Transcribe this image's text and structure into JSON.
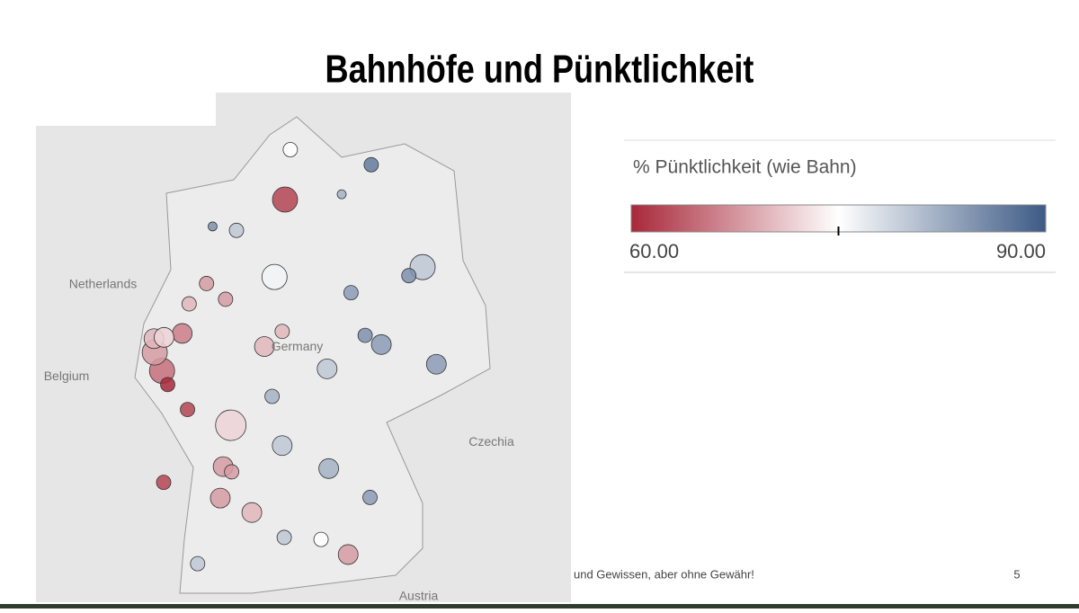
{
  "header": {
    "title": "Bahnhöfe und Pünktlichkeit"
  },
  "legend": {
    "title": "% Pünktlichkeit (wie Bahn)",
    "min": {
      "value": 60,
      "label": "60.00"
    },
    "max": {
      "value": 90,
      "label": "90.00"
    },
    "center": 75,
    "colors": [
      "#a8283a",
      "#ffffff",
      "#3d5a85"
    ]
  },
  "map": {
    "labels": [
      {
        "text": "Netherlands",
        "lon": 5.5,
        "lat": 52.25
      },
      {
        "text": "Germany",
        "lon": 10.3,
        "lat": 51.3
      },
      {
        "text": "Belgium",
        "lon": 4.6,
        "lat": 50.85
      },
      {
        "text": "Czechia",
        "lon": 15.1,
        "lat": 49.85
      },
      {
        "text": "Austria",
        "lon": 13.3,
        "lat": 47.5
      }
    ],
    "stations": [
      {
        "lon": 10,
        "lat": 53.55,
        "pct": 62,
        "size": 4
      },
      {
        "lon": 8.8,
        "lat": 53.08,
        "pct": 80,
        "size": 2
      },
      {
        "lon": 13.4,
        "lat": 52.52,
        "pct": 80,
        "size": 4
      },
      {
        "lon": 9.74,
        "lat": 52.37,
        "pct": 76,
        "size": 4
      },
      {
        "lon": 6.96,
        "lat": 50.94,
        "pct": 65,
        "size": 4
      },
      {
        "lon": 6.78,
        "lat": 51.22,
        "pct": 68,
        "size": 4
      },
      {
        "lon": 6.76,
        "lat": 51.43,
        "pct": 70,
        "size": 3
      },
      {
        "lon": 7.46,
        "lat": 51.51,
        "pct": 66,
        "size": 3
      },
      {
        "lon": 7.01,
        "lat": 51.45,
        "pct": 72,
        "size": 3
      },
      {
        "lon": 8.66,
        "lat": 50.11,
        "pct": 72,
        "size": 5
      },
      {
        "lon": 8.47,
        "lat": 49.48,
        "pct": 68,
        "size": 3
      },
      {
        "lon": 9.18,
        "lat": 48.78,
        "pct": 70,
        "size": 3
      },
      {
        "lon": 11.56,
        "lat": 48.14,
        "pct": 68,
        "size": 3
      },
      {
        "lon": 11.08,
        "lat": 49.45,
        "pct": 82,
        "size": 3
      },
      {
        "lon": 12.38,
        "lat": 51.34,
        "pct": 84,
        "size": 3
      },
      {
        "lon": 13.74,
        "lat": 51.04,
        "pct": 84,
        "size": 3
      },
      {
        "lon": 11.04,
        "lat": 50.97,
        "pct": 80,
        "size": 3
      },
      {
        "lon": 9.49,
        "lat": 51.31,
        "pct": 70,
        "size": 3
      },
      {
        "lon": 9.93,
        "lat": 51.54,
        "pct": 70,
        "size": 2
      },
      {
        "lon": 9.93,
        "lat": 49.8,
        "pct": 80,
        "size": 3
      },
      {
        "lon": 12.13,
        "lat": 54.08,
        "pct": 87,
        "size": 2
      },
      {
        "lon": 10.13,
        "lat": 54.31,
        "pct": 75,
        "size": 2
      },
      {
        "lon": 8.06,
        "lat": 52.27,
        "pct": 68,
        "size": 2
      },
      {
        "lon": 7.63,
        "lat": 51.96,
        "pct": 70,
        "size": 2
      },
      {
        "lon": 7.59,
        "lat": 50.35,
        "pct": 62,
        "size": 2
      },
      {
        "lon": 7.1,
        "lat": 50.73,
        "pct": 60,
        "size": 2
      },
      {
        "lon": 8.4,
        "lat": 49.0,
        "pct": 68,
        "size": 3
      },
      {
        "lon": 7.84,
        "lat": 48.0,
        "pct": 80,
        "size": 2
      },
      {
        "lon": 10.89,
        "lat": 48.37,
        "pct": 75,
        "size": 2
      },
      {
        "lon": 12.1,
        "lat": 49.01,
        "pct": 84,
        "size": 2
      },
      {
        "lon": 11.63,
        "lat": 52.13,
        "pct": 84,
        "size": 2
      },
      {
        "lon": 11.98,
        "lat": 51.48,
        "pct": 85,
        "size": 2
      },
      {
        "lon": 7.0,
        "lat": 49.24,
        "pct": 62,
        "size": 2
      },
      {
        "lon": 9.98,
        "lat": 48.4,
        "pct": 80,
        "size": 2
      },
      {
        "lon": 8.53,
        "lat": 52.03,
        "pct": 68,
        "size": 2
      },
      {
        "lon": 8.21,
        "lat": 53.14,
        "pct": 85,
        "size": 1
      },
      {
        "lon": 13.06,
        "lat": 52.39,
        "pct": 85,
        "size": 2
      },
      {
        "lon": 11.4,
        "lat": 53.63,
        "pct": 82,
        "size": 1
      },
      {
        "lon": 9.68,
        "lat": 50.55,
        "pct": 82,
        "size": 2
      },
      {
        "lon": 8.68,
        "lat": 49.4,
        "pct": 68,
        "size": 2
      }
    ]
  },
  "footer": {
    "note": "und Gewissen, aber ohne Gewähr!",
    "page": "5"
  }
}
